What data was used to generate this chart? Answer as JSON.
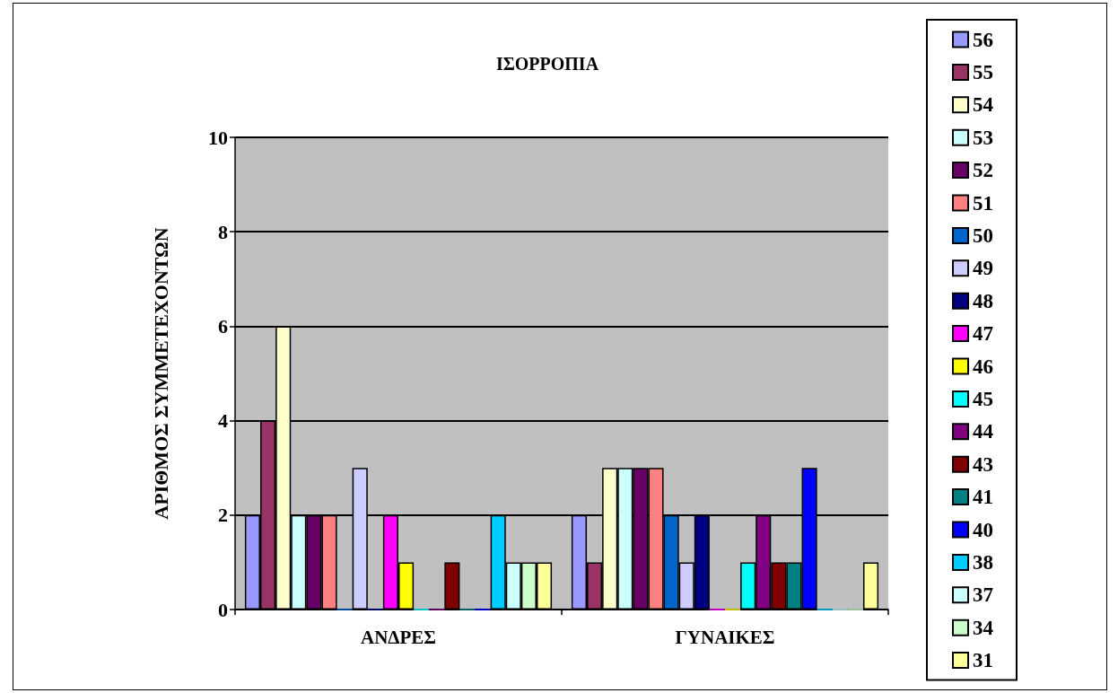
{
  "chart_data": {
    "type": "bar",
    "title": "ΙΣΟΡΡΟΠΙΑ",
    "ylabel": "ΑΡΙΘΜΟΣ ΣΥΜΜΕΤΕΧΟΝΤΩΝ",
    "categories": [
      "ΑΝΔΡΕΣ",
      "ΓΥΝΑΙΚΕΣ"
    ],
    "ylim": [
      0,
      10
    ],
    "yticks": [
      0,
      2,
      4,
      6,
      8,
      10
    ],
    "grid": "y",
    "legend": "right",
    "series": [
      {
        "name": "56",
        "color": "#9999ff",
        "values": [
          2,
          2
        ]
      },
      {
        "name": "55",
        "color": "#993366",
        "values": [
          4,
          1
        ]
      },
      {
        "name": "54",
        "color": "#ffffcc",
        "values": [
          6,
          3
        ]
      },
      {
        "name": "53",
        "color": "#ccffff",
        "values": [
          2,
          3
        ]
      },
      {
        "name": "52",
        "color": "#660066",
        "values": [
          2,
          3
        ]
      },
      {
        "name": "51",
        "color": "#ff8080",
        "values": [
          2,
          3
        ]
      },
      {
        "name": "50",
        "color": "#0066cc",
        "values": [
          0,
          2
        ]
      },
      {
        "name": "49",
        "color": "#ccccff",
        "values": [
          3,
          1
        ]
      },
      {
        "name": "48",
        "color": "#000080",
        "values": [
          0,
          2
        ]
      },
      {
        "name": "47",
        "color": "#ff00ff",
        "values": [
          2,
          0
        ]
      },
      {
        "name": "46",
        "color": "#ffff00",
        "values": [
          1,
          0
        ]
      },
      {
        "name": "45",
        "color": "#00ffff",
        "values": [
          0,
          1
        ]
      },
      {
        "name": "44",
        "color": "#800080",
        "values": [
          0,
          2
        ]
      },
      {
        "name": "43",
        "color": "#800000",
        "values": [
          1,
          1
        ]
      },
      {
        "name": "41",
        "color": "#008080",
        "values": [
          0,
          1
        ]
      },
      {
        "name": "40",
        "color": "#0000ff",
        "values": [
          0,
          3
        ]
      },
      {
        "name": "38",
        "color": "#00ccff",
        "values": [
          2,
          0
        ]
      },
      {
        "name": "37",
        "color": "#ccffff",
        "values": [
          1,
          0
        ]
      },
      {
        "name": "34",
        "color": "#ccffcc",
        "values": [
          1,
          0
        ]
      },
      {
        "name": "31",
        "color": "#ffff99",
        "values": [
          1,
          1
        ]
      }
    ]
  }
}
